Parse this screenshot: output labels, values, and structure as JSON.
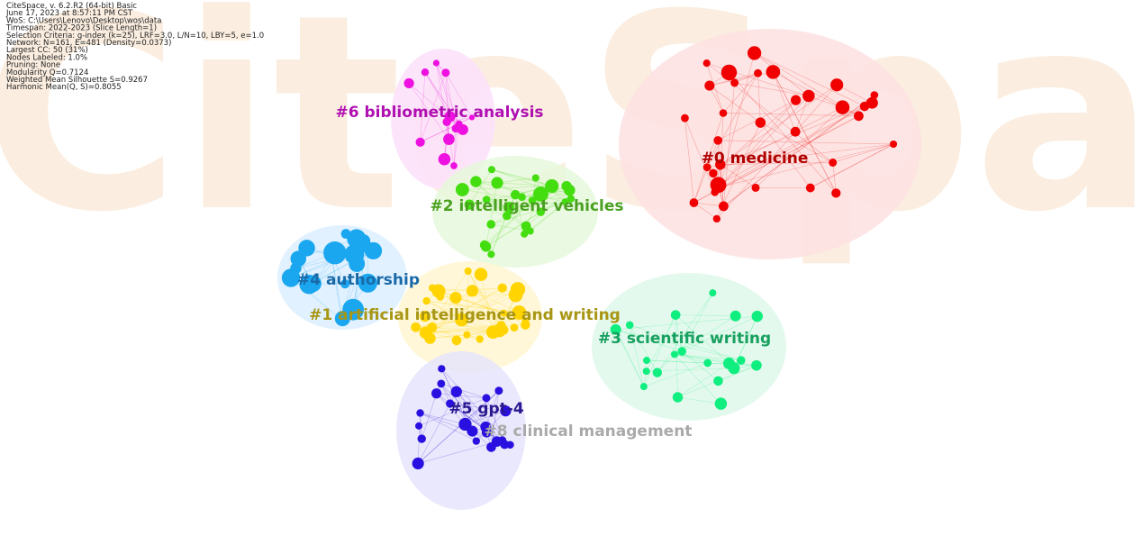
{
  "header": {
    "lines": [
      "CiteSpace, v. 6.2.R2 (64-bit) Basic",
      "June 17, 2023 at 8:57:11 PM CST",
      "WoS: C:\\Users\\Lenovo\\Desktop\\wos\\data",
      "Timespan: 2022-2023 (Slice Length=1)",
      "Selection Criteria: g-index (k=25), LRF=3.0, L/N=10, LBY=5, e=1.0",
      "Network: N=161, E=481 (Density=0.0373)",
      "Largest CC: 50 (31%)",
      "Nodes Labeled: 1.0%",
      "Pruning: None",
      "Modularity Q=0.7124",
      "Weighted Mean Silhouette S=0.9267",
      "Harmonic Mean(Q, S)=0.8055"
    ]
  },
  "watermark": "CiteSpace",
  "clusters": [
    {
      "label": "#0 medicine"
    },
    {
      "label": "#6 bibliometric analysis"
    },
    {
      "label": "#2 intelligent vehicles"
    },
    {
      "label": "#4 authorship"
    },
    {
      "label": "#1 artificial intelligence and writing"
    },
    {
      "label": "#3 scientific writing"
    },
    {
      "label": "#5 gpt-4"
    },
    {
      "label": "#8 clinical management"
    }
  ]
}
